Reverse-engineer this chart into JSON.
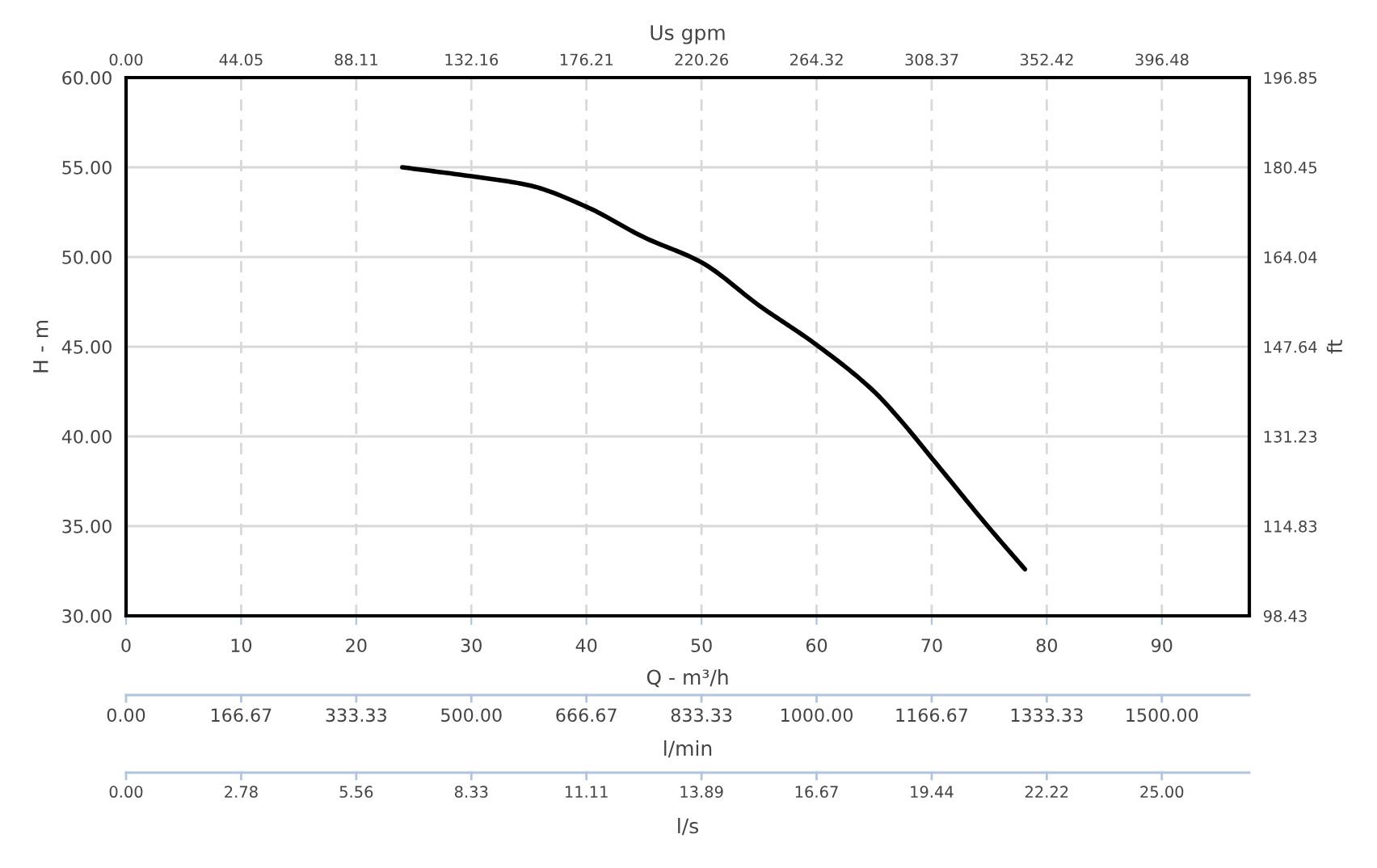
{
  "chart_data": {
    "type": "line",
    "xlabel": "Q - m³/h",
    "ylabel": "H - m",
    "y2label": "ft",
    "x2label": "Us gpm",
    "series": [
      {
        "color": "#000000",
        "x": [
          24,
          30,
          35,
          40,
          45,
          50,
          55,
          60,
          65,
          67.3,
          70,
          75,
          78.1
        ],
        "values": [
          55.0,
          54.5,
          54.0,
          52.8,
          51.1,
          49.7,
          47.3,
          45.1,
          42.5,
          40.9,
          38.8,
          34.9,
          32.6
        ]
      }
    ],
    "xlim": [
      0,
      97.6
    ],
    "xticks": [
      0,
      10,
      20,
      30,
      40,
      50,
      60,
      70,
      80,
      90
    ],
    "ylim": [
      30,
      60
    ],
    "yticks": [
      {
        "value": 30,
        "label": "30.00"
      },
      {
        "value": 35,
        "label": "35.00"
      },
      {
        "value": 40,
        "label": "40.00"
      },
      {
        "value": 45,
        "label": "45.00"
      },
      {
        "value": 50,
        "label": "50.00"
      },
      {
        "value": 55,
        "label": "55.00"
      },
      {
        "value": 60,
        "label": "60.00"
      }
    ],
    "y2lim": [
      98.43,
      196.85
    ],
    "y2ticks": [
      98.43,
      114.83,
      131.23,
      147.64,
      164.04,
      180.45,
      196.85
    ],
    "x2lim": [
      0,
      429.9
    ],
    "x2ticks": [
      {
        "value": 0,
        "label": "0.00"
      },
      44.05,
      88.11,
      132.16,
      176.21,
      220.26,
      264.32,
      308.37,
      352.42,
      396.48
    ],
    "annotations": [
      "0.00",
      "166.67",
      "333.33",
      "500.00",
      "666.67",
      "833.33",
      "1000.00",
      "1166.67",
      "1333.33",
      "1500.00",
      "l/min",
      "0.00",
      "2.78",
      "5.56",
      "8.33",
      "11.11",
      "13.89",
      "16.67",
      "19.44",
      "22.22",
      "25.00",
      "l/s"
    ],
    "grid": true,
    "marker": "none",
    "line_style": "solid"
  }
}
